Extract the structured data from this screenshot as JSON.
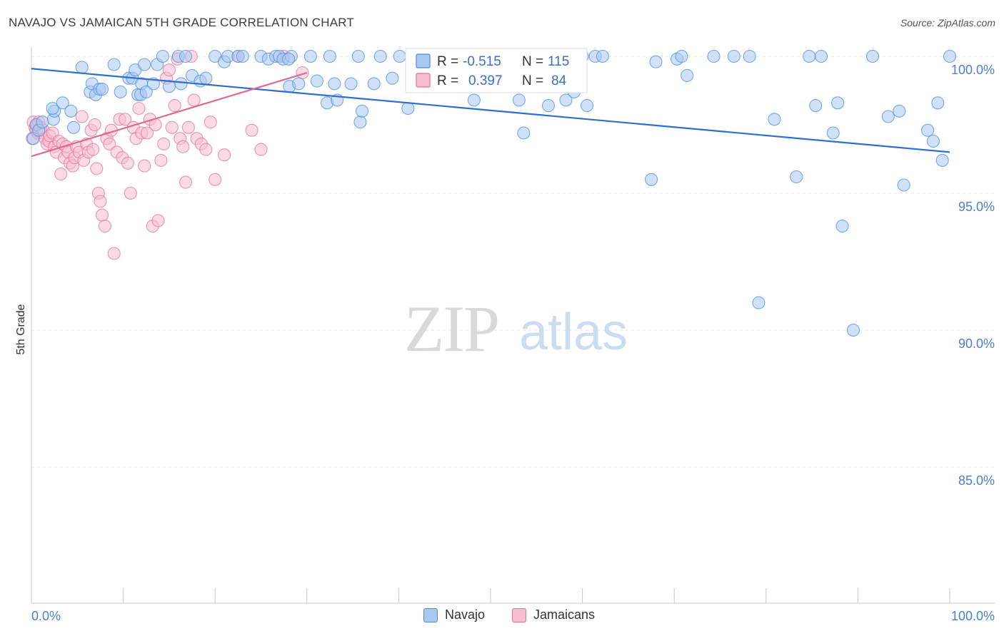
{
  "header": {
    "title": "NAVAJO VS JAMAICAN 5TH GRADE CORRELATION CHART",
    "source": "Source: ZipAtlas.com"
  },
  "watermark": {
    "zip": "ZIP",
    "atlas": "atlas"
  },
  "stats": [
    {
      "r_label": "R =",
      "r_value": "-0.515",
      "n_label": "N =",
      "n_value": "115"
    },
    {
      "r_label": "R =",
      "r_value": "0.397",
      "n_label": "N =",
      "n_value": "84"
    }
  ],
  "chart_data": {
    "type": "scatter",
    "ylabel": "5th Grade",
    "xlabel": "",
    "xlim": [
      0,
      100
    ],
    "ylim": [
      80.5,
      100.8
    ],
    "x_tick_labels": [
      "0.0%",
      "100.0%"
    ],
    "y_ticks": [
      {
        "value": 100,
        "label": "100.0%"
      },
      {
        "value": 95,
        "label": "95.0%"
      },
      {
        "value": 90,
        "label": "90.0%"
      },
      {
        "value": 85,
        "label": "85.0%"
      }
    ],
    "grid": true,
    "legend_position": "bottom-center",
    "series": [
      {
        "name": "Navajo",
        "color": "#4a90e2",
        "fill": "#a9c8f0",
        "trend": {
          "x": [
            0,
            100
          ],
          "y": [
            99.55,
            96.5
          ]
        },
        "points": [
          [
            0.2,
            97.0
          ],
          [
            0.5,
            97.5
          ],
          [
            0.8,
            97.3
          ],
          [
            1.2,
            97.6
          ],
          [
            2.4,
            97.7
          ],
          [
            2.5,
            98.0
          ],
          [
            2.3,
            98.1
          ],
          [
            3.4,
            98.3
          ],
          [
            4.3,
            98.0
          ],
          [
            4.6,
            97.4
          ],
          [
            5.5,
            99.6
          ],
          [
            6.4,
            98.7
          ],
          [
            6.6,
            99.0
          ],
          [
            7.0,
            98.6
          ],
          [
            7.4,
            98.8
          ],
          [
            7.7,
            98.8
          ],
          [
            9.0,
            99.7
          ],
          [
            9.7,
            98.7
          ],
          [
            10.6,
            99.2
          ],
          [
            11.0,
            99.2
          ],
          [
            11.3,
            99.5
          ],
          [
            11.6,
            98.6
          ],
          [
            11.9,
            98.6
          ],
          [
            12.0,
            99.0
          ],
          [
            12.3,
            99.7
          ],
          [
            12.5,
            98.7
          ],
          [
            13.3,
            99.0
          ],
          [
            13.7,
            99.7
          ],
          [
            14.3,
            100.0
          ],
          [
            15.0,
            98.9
          ],
          [
            16.0,
            100.0
          ],
          [
            16.3,
            99.0
          ],
          [
            16.8,
            100.0
          ],
          [
            17.5,
            99.3
          ],
          [
            18.4,
            99.1
          ],
          [
            19.0,
            99.2
          ],
          [
            20.0,
            100.0
          ],
          [
            21.0,
            99.8
          ],
          [
            21.4,
            100.0
          ],
          [
            22.5,
            100.0
          ],
          [
            23.0,
            100.0
          ],
          [
            25.0,
            100.0
          ],
          [
            25.8,
            99.9
          ],
          [
            26.6,
            100.0
          ],
          [
            27.0,
            100.0
          ],
          [
            27.4,
            99.9
          ],
          [
            28.3,
            100.0
          ],
          [
            28.0,
            99.9
          ],
          [
            28.1,
            98.9
          ],
          [
            29.1,
            99.0
          ],
          [
            30.4,
            100.0
          ],
          [
            31.1,
            99.1
          ],
          [
            32.2,
            98.3
          ],
          [
            32.5,
            100.0
          ],
          [
            33.0,
            99.0
          ],
          [
            33.3,
            98.4
          ],
          [
            34.8,
            99.0
          ],
          [
            35.6,
            100.0
          ],
          [
            35.8,
            97.6
          ],
          [
            36.0,
            98.0
          ],
          [
            37.3,
            99.0
          ],
          [
            38.0,
            100.0
          ],
          [
            39.3,
            99.2
          ],
          [
            40.1,
            100.0
          ],
          [
            41.0,
            98.1
          ],
          [
            41.7,
            100.0
          ],
          [
            42.0,
            100.0
          ],
          [
            43.5,
            100.0
          ],
          [
            44.4,
            100.0
          ],
          [
            45.9,
            100.0
          ],
          [
            46.5,
            99.8
          ],
          [
            48.2,
            98.4
          ],
          [
            51.7,
            100.0
          ],
          [
            52.1,
            100.0
          ],
          [
            52.5,
            100.0
          ],
          [
            53.1,
            98.4
          ],
          [
            53.6,
            97.2
          ],
          [
            54.5,
            100.0
          ],
          [
            56.3,
            98.2
          ],
          [
            56.9,
            100.0
          ],
          [
            58.2,
            98.4
          ],
          [
            59.1,
            98.7
          ],
          [
            60.0,
            100.0
          ],
          [
            60.5,
            98.2
          ],
          [
            61.4,
            100.0
          ],
          [
            62.2,
            100.0
          ],
          [
            67.5,
            95.5
          ],
          [
            68.0,
            99.8
          ],
          [
            70.3,
            99.9
          ],
          [
            70.8,
            100.0
          ],
          [
            71.4,
            99.3
          ],
          [
            74.3,
            100.0
          ],
          [
            76.5,
            100.0
          ],
          [
            78.2,
            100.0
          ],
          [
            79.2,
            91.0
          ],
          [
            80.9,
            97.7
          ],
          [
            83.3,
            95.6
          ],
          [
            84.7,
            100.0
          ],
          [
            85.4,
            98.2
          ],
          [
            86.0,
            100.0
          ],
          [
            87.3,
            97.2
          ],
          [
            87.8,
            98.3
          ],
          [
            88.3,
            93.8
          ],
          [
            89.5,
            90.0
          ],
          [
            91.6,
            100.0
          ],
          [
            93.3,
            97.8
          ],
          [
            94.5,
            98.0
          ],
          [
            95.0,
            95.3
          ],
          [
            97.6,
            97.3
          ],
          [
            98.2,
            96.9
          ],
          [
            98.7,
            98.3
          ],
          [
            99.2,
            96.2
          ],
          [
            100.0,
            100.0
          ]
        ]
      },
      {
        "name": "Jamaicans",
        "color": "#e8719a",
        "fill": "#f6bdd0",
        "trend": {
          "x": [
            0,
            30
          ],
          "y": [
            96.35,
            99.4
          ]
        },
        "points": [
          [
            0.1,
            97.0
          ],
          [
            0.2,
            97.6
          ],
          [
            0.4,
            97.4
          ],
          [
            0.5,
            97.3
          ],
          [
            0.6,
            97.5
          ],
          [
            0.7,
            97.2
          ],
          [
            0.8,
            97.6
          ],
          [
            1.0,
            97.4
          ],
          [
            1.1,
            97.2
          ],
          [
            1.3,
            97.3
          ],
          [
            1.5,
            97.0
          ],
          [
            1.7,
            96.8
          ],
          [
            1.9,
            96.9
          ],
          [
            2.0,
            97.1
          ],
          [
            2.3,
            97.2
          ],
          [
            2.5,
            96.7
          ],
          [
            2.7,
            96.5
          ],
          [
            3.0,
            96.9
          ],
          [
            3.2,
            95.7
          ],
          [
            3.4,
            96.8
          ],
          [
            3.6,
            96.3
          ],
          [
            3.8,
            96.7
          ],
          [
            4.0,
            96.5
          ],
          [
            4.2,
            96.1
          ],
          [
            4.5,
            96.0
          ],
          [
            4.7,
            96.3
          ],
          [
            4.9,
            96.7
          ],
          [
            5.2,
            96.5
          ],
          [
            5.5,
            97.8
          ],
          [
            5.7,
            96.2
          ],
          [
            6.0,
            96.8
          ],
          [
            6.2,
            96.5
          ],
          [
            6.5,
            97.3
          ],
          [
            6.7,
            96.6
          ],
          [
            6.9,
            97.5
          ],
          [
            7.1,
            95.9
          ],
          [
            7.3,
            95.0
          ],
          [
            7.5,
            94.7
          ],
          [
            7.7,
            94.2
          ],
          [
            8.0,
            93.8
          ],
          [
            8.2,
            97.0
          ],
          [
            8.5,
            96.8
          ],
          [
            8.7,
            97.3
          ],
          [
            9.0,
            92.8
          ],
          [
            9.3,
            96.5
          ],
          [
            9.6,
            97.7
          ],
          [
            9.9,
            96.3
          ],
          [
            10.2,
            97.7
          ],
          [
            10.5,
            96.1
          ],
          [
            10.8,
            95.0
          ],
          [
            11.1,
            97.4
          ],
          [
            11.4,
            97.0
          ],
          [
            11.7,
            98.1
          ],
          [
            12.0,
            97.2
          ],
          [
            12.3,
            96.0
          ],
          [
            12.6,
            97.2
          ],
          [
            12.9,
            97.7
          ],
          [
            13.2,
            93.8
          ],
          [
            13.5,
            97.5
          ],
          [
            13.8,
            94.0
          ],
          [
            14.1,
            96.2
          ],
          [
            14.4,
            96.8
          ],
          [
            14.7,
            99.2
          ],
          [
            15.0,
            99.5
          ],
          [
            15.3,
            97.4
          ],
          [
            15.6,
            98.2
          ],
          [
            15.9,
            99.9
          ],
          [
            16.2,
            97.0
          ],
          [
            16.5,
            96.7
          ],
          [
            16.8,
            95.4
          ],
          [
            17.1,
            97.4
          ],
          [
            17.4,
            100.0
          ],
          [
            17.7,
            98.4
          ],
          [
            18.0,
            97.0
          ],
          [
            18.5,
            96.8
          ],
          [
            19.0,
            96.6
          ],
          [
            19.5,
            97.6
          ],
          [
            20.0,
            95.5
          ],
          [
            21.0,
            96.4
          ],
          [
            22.5,
            100.0
          ],
          [
            24.0,
            97.3
          ],
          [
            25.0,
            96.6
          ],
          [
            27.5,
            100.0
          ],
          [
            29.5,
            99.4
          ]
        ]
      }
    ]
  }
}
